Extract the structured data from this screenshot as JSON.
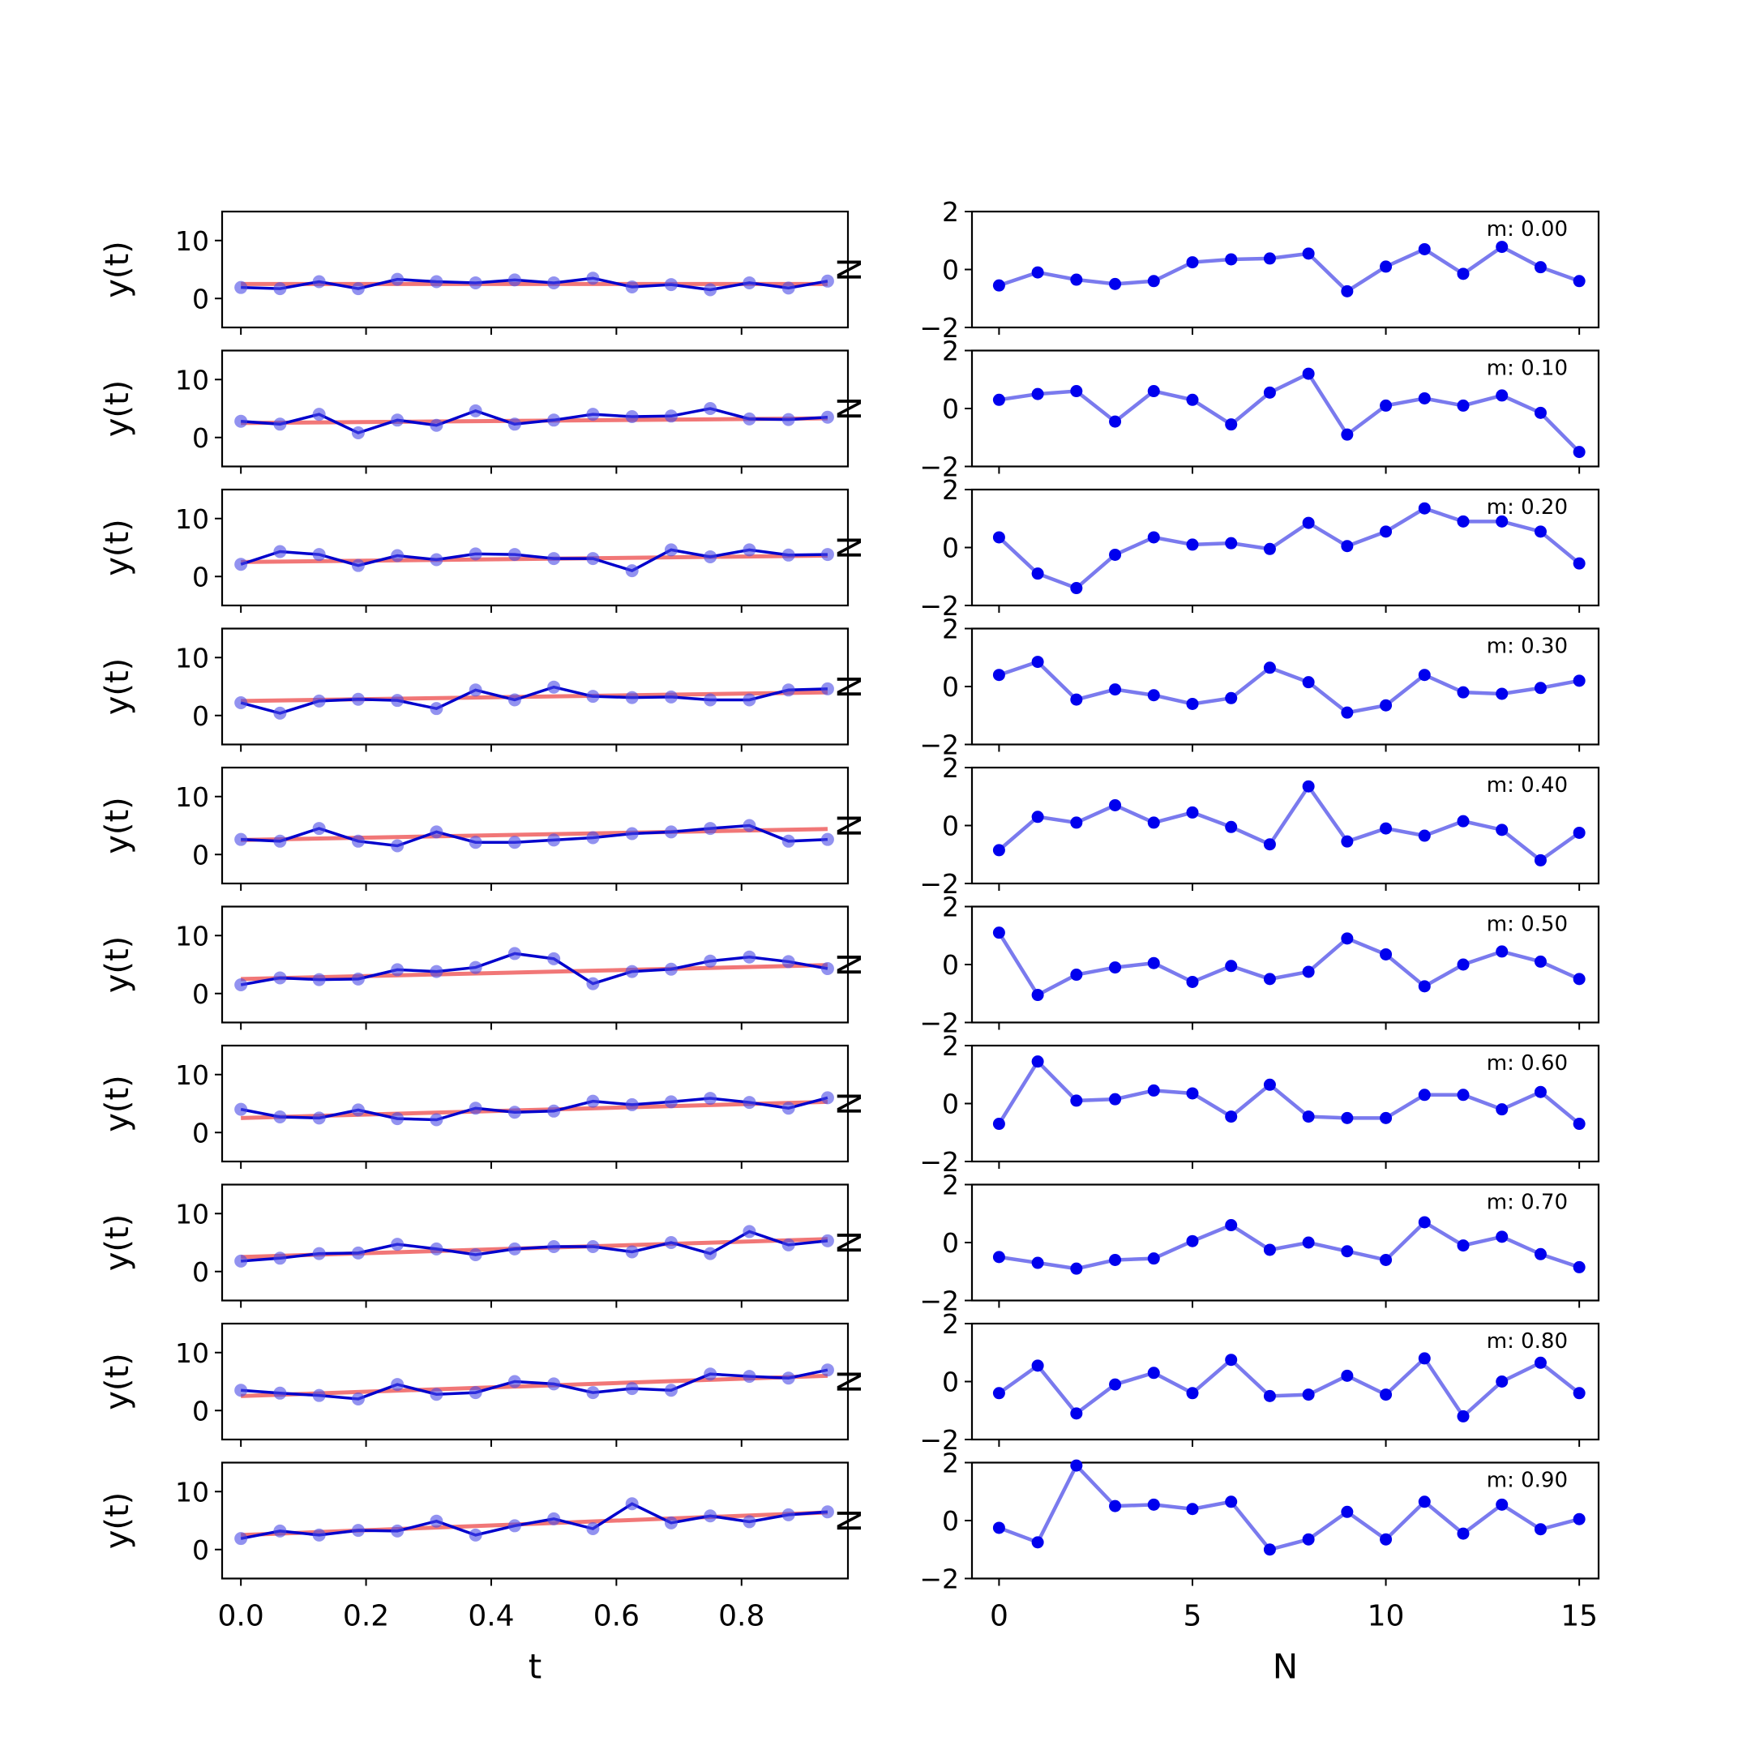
{
  "colors": {
    "data_line": "#0000cc",
    "data_points": "#4a4ae6",
    "fit_line": "#f06868",
    "noise": "#7a7aee",
    "noise_points": "#0000ee"
  },
  "labels": {
    "left_ylabel": "y(t)",
    "left_xlabel": "t",
    "right_ylabel": "N",
    "right_xlabel": "N"
  },
  "chart_data": [
    {
      "type": "line",
      "panel": "left",
      "rows": 10,
      "xlabel": "t",
      "ylabel": "y(t)",
      "xlim": [
        -0.03,
        0.97
      ],
      "ylim": [
        -5,
        15
      ],
      "xticks": [
        0.0,
        0.2,
        0.4,
        0.6,
        0.8
      ],
      "xticklabels": [
        "0.0",
        "0.2",
        "0.4",
        "0.6",
        "0.8"
      ],
      "yticks": [
        0,
        10
      ],
      "x": [
        0.0,
        0.0625,
        0.125,
        0.1875,
        0.25,
        0.3125,
        0.375,
        0.4375,
        0.5,
        0.5625,
        0.625,
        0.6875,
        0.75,
        0.8125,
        0.875,
        0.9375
      ],
      "series": [
        {
          "data": [
            1.9,
            1.7,
            2.9,
            1.7,
            3.3,
            2.9,
            2.7,
            3.2,
            2.7,
            3.5,
            2.0,
            2.4,
            1.5,
            2.7,
            1.8,
            3.0
          ],
          "fit": [
            2.5,
            2.5
          ]
        },
        {
          "data": [
            2.8,
            2.3,
            4.0,
            0.8,
            3.0,
            2.1,
            4.6,
            2.3,
            3.0,
            4.0,
            3.6,
            3.7,
            5.0,
            3.2,
            3.1,
            3.5
          ],
          "fit": [
            2.5,
            3.3
          ]
        },
        {
          "data": [
            2.1,
            4.3,
            3.8,
            1.9,
            3.6,
            2.9,
            3.9,
            3.8,
            3.1,
            3.1,
            1.0,
            4.6,
            3.4,
            4.6,
            3.7,
            3.8
          ],
          "fit": [
            2.5,
            3.6
          ]
        },
        {
          "data": [
            2.2,
            0.4,
            2.5,
            2.8,
            2.6,
            1.2,
            4.4,
            2.7,
            4.9,
            3.3,
            3.1,
            3.2,
            2.7,
            2.7,
            4.4,
            4.6
          ],
          "fit": [
            2.5,
            4.0
          ]
        },
        {
          "data": [
            2.6,
            2.3,
            4.5,
            2.3,
            1.5,
            3.9,
            2.1,
            2.1,
            2.5,
            2.9,
            3.6,
            3.9,
            4.5,
            5.0,
            2.3,
            2.6
          ],
          "fit": [
            2.5,
            4.4
          ]
        },
        {
          "data": [
            1.5,
            2.7,
            2.4,
            2.5,
            4.1,
            3.8,
            4.5,
            6.9,
            6.0,
            1.7,
            3.8,
            4.2,
            5.6,
            6.3,
            5.5,
            4.3
          ],
          "fit": [
            2.5,
            4.9
          ]
        },
        {
          "data": [
            4.0,
            2.7,
            2.5,
            3.9,
            2.4,
            2.2,
            4.2,
            3.5,
            3.7,
            5.4,
            4.8,
            5.3,
            5.9,
            5.2,
            4.2,
            6.0
          ],
          "fit": [
            2.5,
            5.3
          ]
        },
        {
          "data": [
            1.8,
            2.3,
            3.1,
            3.2,
            4.7,
            3.9,
            2.9,
            3.9,
            4.3,
            4.3,
            3.4,
            5.0,
            3.1,
            6.9,
            4.6,
            5.3
          ],
          "fit": [
            2.5,
            5.6
          ]
        },
        {
          "data": [
            3.5,
            3.0,
            2.6,
            2.0,
            4.5,
            2.8,
            3.1,
            5.0,
            4.6,
            3.1,
            3.8,
            3.5,
            6.3,
            5.9,
            5.6,
            7.0
          ],
          "fit": [
            2.5,
            6.0
          ]
        },
        {
          "data": [
            1.9,
            3.2,
            2.5,
            3.3,
            3.2,
            4.9,
            2.5,
            4.1,
            5.3,
            3.6,
            7.9,
            4.6,
            5.8,
            4.8,
            6.0,
            6.5
          ],
          "fit": [
            2.5,
            6.4
          ]
        }
      ]
    },
    {
      "type": "line",
      "panel": "right",
      "rows": 10,
      "xlabel": "N",
      "ylabel": "N",
      "xlim": [
        -0.7,
        15.5
      ],
      "ylim": [
        -2,
        2
      ],
      "xticks": [
        0,
        5,
        10,
        15
      ],
      "xticklabels": [
        "0",
        "5",
        "10",
        "15"
      ],
      "yticks": [
        -2,
        0,
        2
      ],
      "yticklabels": [
        "−2",
        "0",
        "2"
      ],
      "x": [
        0,
        1,
        2,
        3,
        4,
        5,
        6,
        7,
        8,
        9,
        10,
        11,
        12,
        13,
        14,
        15
      ],
      "series": [
        {
          "label": "m: 0.00",
          "values": [
            -0.55,
            -0.1,
            -0.35,
            -0.5,
            -0.4,
            0.25,
            0.35,
            0.38,
            0.55,
            -0.75,
            0.1,
            0.7,
            -0.15,
            0.78,
            0.08,
            -0.4
          ]
        },
        {
          "label": "m: 0.10",
          "values": [
            0.3,
            0.5,
            0.6,
            -0.45,
            0.6,
            0.3,
            -0.55,
            0.55,
            1.2,
            -0.9,
            0.1,
            0.35,
            0.1,
            0.45,
            -0.15,
            -1.5
          ]
        },
        {
          "label": "m: 0.20",
          "values": [
            0.35,
            -0.9,
            -1.4,
            -0.25,
            0.35,
            0.1,
            0.15,
            -0.05,
            0.85,
            0.05,
            0.55,
            1.35,
            0.9,
            0.9,
            0.55,
            -0.55
          ]
        },
        {
          "label": "m: 0.30",
          "values": [
            0.4,
            0.85,
            -0.45,
            -0.1,
            -0.3,
            -0.6,
            -0.4,
            0.65,
            0.15,
            -0.9,
            -0.65,
            0.4,
            -0.2,
            -0.25,
            -0.05,
            0.2
          ]
        },
        {
          "label": "m: 0.40",
          "values": [
            -0.85,
            0.3,
            0.1,
            0.7,
            0.1,
            0.45,
            -0.05,
            -0.65,
            1.35,
            -0.55,
            -0.1,
            -0.35,
            0.15,
            -0.15,
            -1.2,
            -0.25
          ]
        },
        {
          "label": "m: 0.50",
          "values": [
            1.1,
            -1.05,
            -0.35,
            -0.1,
            0.05,
            -0.6,
            -0.05,
            -0.5,
            -0.25,
            0.9,
            0.35,
            -0.75,
            0.0,
            0.45,
            0.1,
            -0.5
          ]
        },
        {
          "label": "m: 0.60",
          "values": [
            -0.7,
            1.45,
            0.1,
            0.15,
            0.45,
            0.35,
            -0.45,
            0.65,
            -0.45,
            -0.5,
            -0.5,
            0.3,
            0.3,
            -0.2,
            0.4,
            -0.7
          ]
        },
        {
          "label": "m: 0.70",
          "values": [
            -0.5,
            -0.7,
            -0.9,
            -0.6,
            -0.55,
            0.05,
            0.6,
            -0.25,
            0.0,
            -0.3,
            -0.6,
            0.7,
            -0.1,
            0.2,
            -0.4,
            -0.85
          ]
        },
        {
          "label": "m: 0.80",
          "values": [
            -0.4,
            0.55,
            -1.1,
            -0.1,
            0.3,
            -0.4,
            0.75,
            -0.5,
            -0.45,
            0.2,
            -0.45,
            0.8,
            -1.2,
            0.0,
            0.65,
            -0.4
          ]
        },
        {
          "label": "m: 0.90",
          "values": [
            -0.25,
            -0.75,
            1.9,
            0.5,
            0.55,
            0.4,
            0.65,
            -1.0,
            -0.65,
            0.3,
            -0.65,
            0.65,
            -0.45,
            0.55,
            -0.3,
            0.05
          ]
        }
      ]
    }
  ]
}
